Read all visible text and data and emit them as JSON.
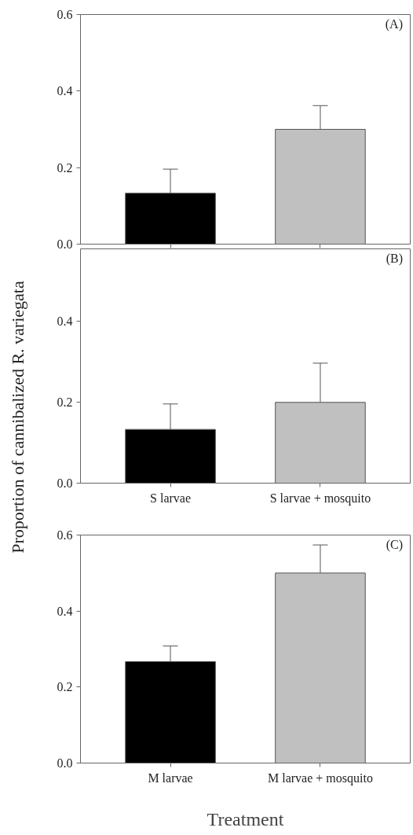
{
  "chart_data": [
    {
      "type": "bar",
      "values": [
        0.133,
        0.3
      ],
      "errors": [
        0.063,
        0.062
      ],
      "colors": [
        "#000000",
        "#c0c0c0"
      ],
      "ylim": [
        0,
        0.6
      ],
      "yticks": [
        {
          "value": 0,
          "label": "0.0"
        },
        {
          "value": 0.2,
          "label": "0.2"
        },
        {
          "value": 0.4,
          "label": "0.4"
        },
        {
          "value": 0.6,
          "label": "0.6"
        }
      ],
      "tick_labels": "y",
      "annotations": [
        "(A)"
      ]
    },
    {
      "type": "bar",
      "categories": [
        "S larvae",
        "S larvae + mosquito"
      ],
      "values": [
        0.133,
        0.2
      ],
      "errors": [
        0.063,
        0.097
      ],
      "colors": [
        "#000000",
        "#c0c0c0"
      ],
      "ylim": [
        0,
        0.58
      ],
      "yticks": [
        {
          "value": 0,
          "label": "0.0"
        },
        {
          "value": 0.2,
          "label": "0.2"
        },
        {
          "value": 0.4,
          "label": "0.4"
        }
      ],
      "ylabel": "Proportion of cannibalized R. variegata",
      "annotations": [
        "(B)"
      ]
    },
    {
      "type": "bar",
      "categories": [
        "M larvae",
        "M larvae + mosquito"
      ],
      "values": [
        0.267,
        0.5
      ],
      "errors": [
        0.041,
        0.074
      ],
      "colors": [
        "#000000",
        "#c0c0c0"
      ],
      "ylim": [
        0,
        0.6
      ],
      "yticks": [
        {
          "value": 0,
          "label": "0.0"
        },
        {
          "value": 0.2,
          "label": "0.2"
        },
        {
          "value": 0.4,
          "label": "0.4"
        },
        {
          "value": 0.6,
          "label": "0.6"
        }
      ],
      "xlabel": "Treatment",
      "annotations": [
        "(C)"
      ]
    }
  ]
}
